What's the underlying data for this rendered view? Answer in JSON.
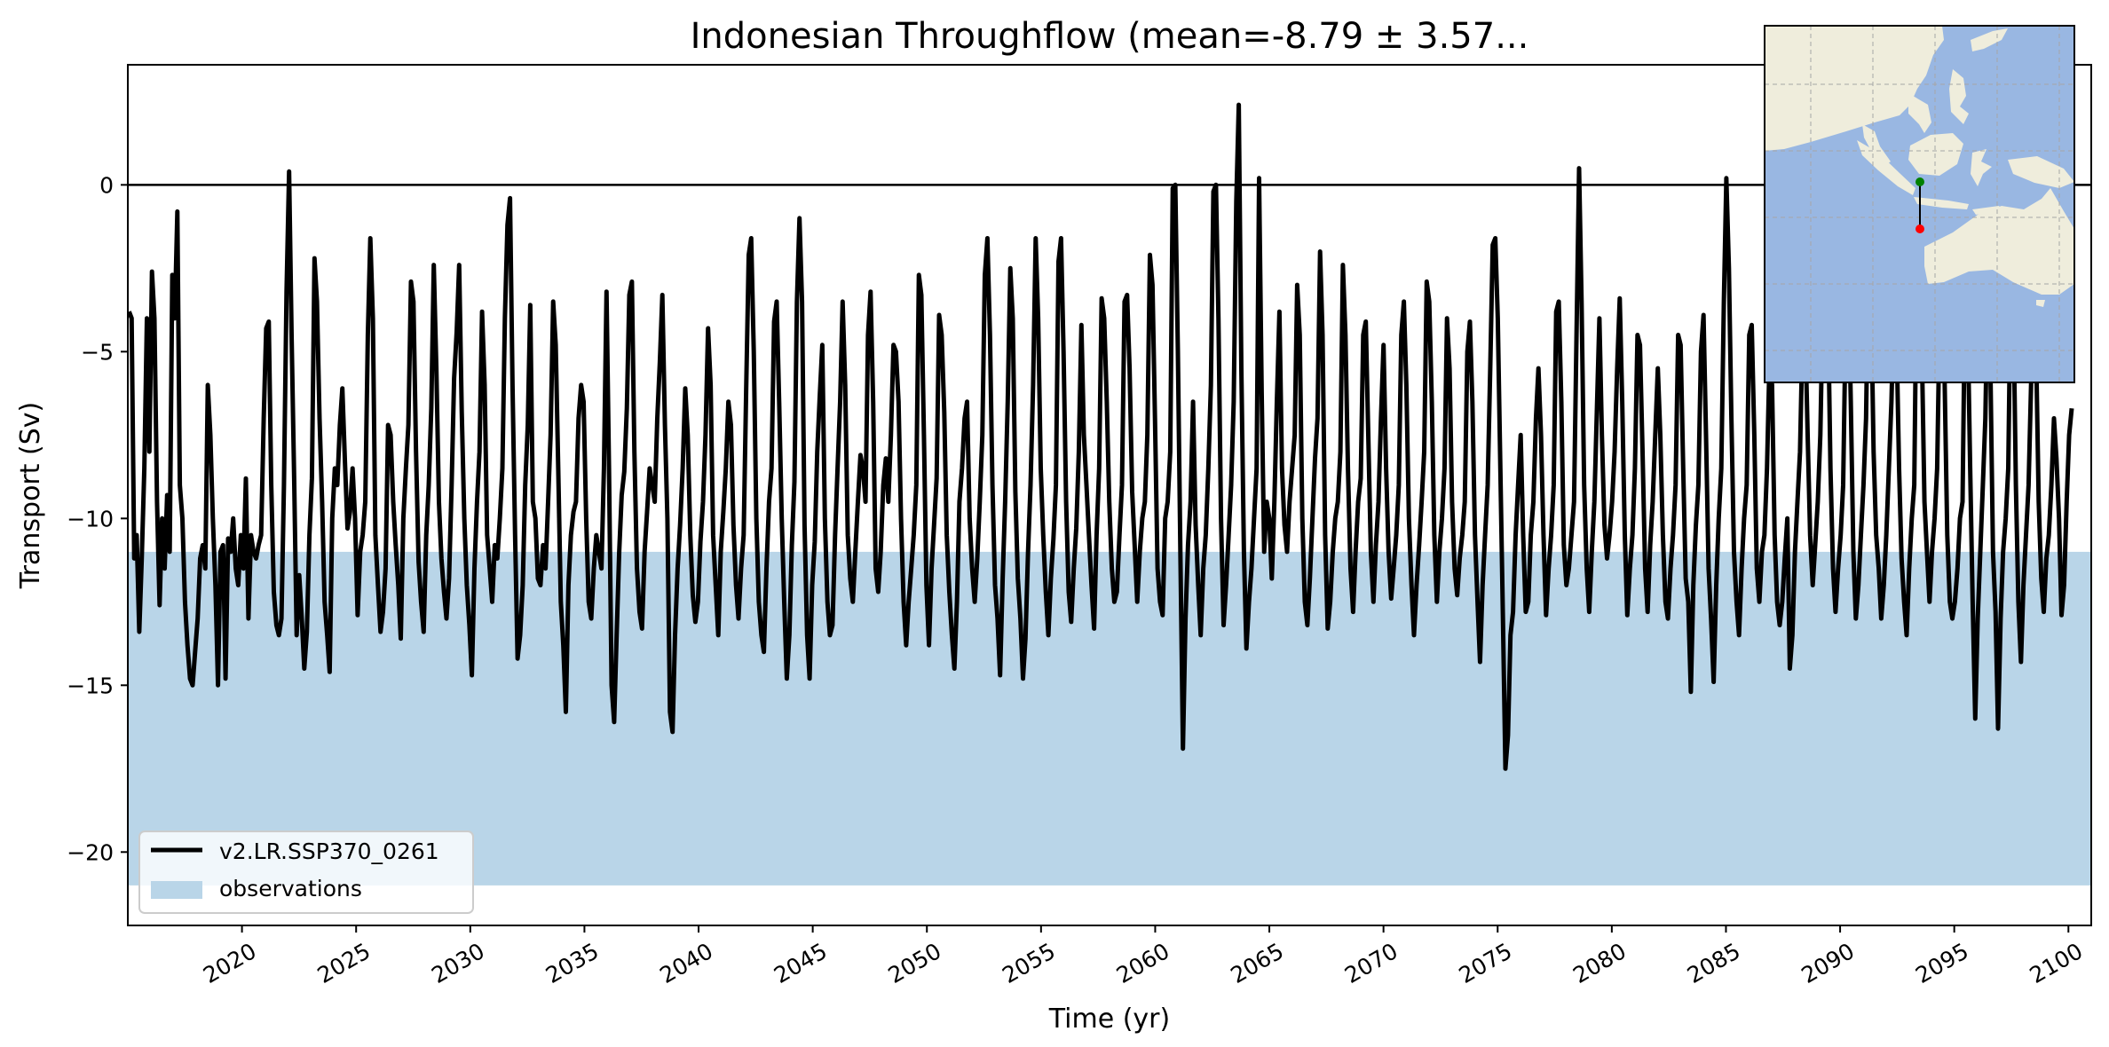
{
  "chart_data": {
    "type": "line",
    "title": "Indonesian Throughflow (mean=-8.79 ± 3.57...",
    "xlabel": "Time (yr)",
    "ylabel": "Transport (Sv)",
    "xlim": [
      2015,
      2101
    ],
    "ylim": [
      -22.2,
      3.6
    ],
    "x_ticks": [
      2020,
      2025,
      2030,
      2035,
      2040,
      2045,
      2050,
      2055,
      2060,
      2065,
      2070,
      2075,
      2080,
      2085,
      2090,
      2095,
      2100
    ],
    "x_tick_labels": [
      "2020",
      "2025",
      "2030",
      "2035",
      "2040",
      "2045",
      "2050",
      "2055",
      "2060",
      "2065",
      "2070",
      "2075",
      "2080",
      "2085",
      "2090",
      "2095",
      "2100"
    ],
    "y_ticks": [
      0,
      -5,
      -10,
      -15,
      -20
    ],
    "y_tick_labels": [
      "0",
      "−5",
      "−10",
      "−15",
      "−20"
    ],
    "zero_line": 0,
    "legend_position": "lower-left",
    "grid": false,
    "series": [
      {
        "name": "v2.LR.SSP370_0261",
        "color": "#000000",
        "sampling": "monthly",
        "start_year": 2015,
        "values": [
          -3.8,
          -4.0,
          -11.2,
          -10.5,
          -13.4,
          -11.2,
          -8.5,
          -4.0,
          -8.0,
          -2.6,
          -4.0,
          -9.5,
          -12.6,
          -10.0,
          -11.5,
          -9.3,
          -11.0,
          -2.7,
          -4.0,
          -0.8,
          -9.0,
          -10.0,
          -12.5,
          -13.8,
          -14.8,
          -15.0,
          -14.0,
          -13.0,
          -11.2,
          -10.8,
          -11.5,
          -6.0,
          -7.5,
          -10.0,
          -12.0,
          -15.0,
          -11.0,
          -10.8,
          -14.8,
          -10.6,
          -11.0,
          -10.0,
          -11.5,
          -12.0,
          -10.5,
          -11.5,
          -8.8,
          -13.0,
          -10.5,
          -11.0,
          -11.2,
          -10.8,
          -10.5,
          -7.0,
          -4.3,
          -4.1,
          -9.0,
          -12.2,
          -13.2,
          -13.5,
          -13.0,
          -9.0,
          -3.2,
          0.4,
          -4.5,
          -8.8,
          -13.5,
          -11.7,
          -13.0,
          -14.5,
          -13.4,
          -10.5,
          -8.8,
          -2.2,
          -3.5,
          -7.0,
          -9.5,
          -12.5,
          -13.5,
          -14.6,
          -10.0,
          -8.5,
          -9.0,
          -7.2,
          -6.1,
          -8.3,
          -10.3,
          -9.8,
          -8.5,
          -10.0,
          -12.9,
          -11.0,
          -10.5,
          -9.5,
          -4.5,
          -1.6,
          -4.0,
          -10.5,
          -12.0,
          -13.4,
          -12.8,
          -11.5,
          -7.2,
          -7.5,
          -9.5,
          -10.8,
          -12.0,
          -13.6,
          -10.0,
          -8.5,
          -7.2,
          -2.9,
          -3.5,
          -8.0,
          -11.3,
          -12.5,
          -13.4,
          -10.5,
          -9.0,
          -6.7,
          -2.4,
          -5.5,
          -9.5,
          -11.2,
          -12.2,
          -13.0,
          -11.8,
          -9.0,
          -5.8,
          -4.4,
          -2.4,
          -6.8,
          -10.0,
          -12.0,
          -13.2,
          -14.7,
          -11.5,
          -9.5,
          -8.0,
          -3.8,
          -6.0,
          -10.5,
          -11.5,
          -12.5,
          -10.8,
          -11.2,
          -10.0,
          -8.5,
          -4.0,
          -1.2,
          -0.4,
          -6.0,
          -10.5,
          -14.2,
          -13.5,
          -12.0,
          -9.0,
          -7.2,
          -3.6,
          -9.5,
          -10.0,
          -11.8,
          -12.0,
          -10.8,
          -11.5,
          -9.5,
          -7.5,
          -3.5,
          -4.8,
          -8.5,
          -12.5,
          -13.8,
          -15.8,
          -12.0,
          -10.5,
          -9.8,
          -9.5,
          -7.0,
          -6.0,
          -6.5,
          -10.0,
          -12.5,
          -13.0,
          -11.5,
          -10.5,
          -11.0,
          -11.5,
          -8.5,
          -3.2,
          -8.5,
          -15.0,
          -16.1,
          -13.5,
          -11.0,
          -9.3,
          -8.6,
          -6.7,
          -3.3,
          -2.9,
          -8.0,
          -11.5,
          -12.8,
          -13.3,
          -11.0,
          -9.8,
          -8.5,
          -9.0,
          -9.5,
          -7.0,
          -5.3,
          -3.3,
          -7.2,
          -10.0,
          -15.8,
          -16.4,
          -13.5,
          -11.5,
          -10.2,
          -8.5,
          -6.1,
          -7.5,
          -10.5,
          -12.3,
          -13.1,
          -12.5,
          -10.7,
          -9.5,
          -7.5,
          -4.3,
          -6.0,
          -10.5,
          -12.0,
          -13.5,
          -11.0,
          -9.8,
          -8.5,
          -6.5,
          -7.2,
          -10.2,
          -12.0,
          -13.0,
          -11.5,
          -10.5,
          -6.2,
          -2.1,
          -1.6,
          -5.0,
          -10.0,
          -12.5,
          -13.5,
          -14.0,
          -11.5,
          -9.5,
          -8.5,
          -4.1,
          -3.5,
          -6.5,
          -10.0,
          -12.5,
          -14.8,
          -13.5,
          -10.8,
          -8.9,
          -3.5,
          -1.0,
          -3.5,
          -10.2,
          -13.5,
          -14.8,
          -12.0,
          -10.7,
          -8.0,
          -6.3,
          -4.8,
          -10.0,
          -12.5,
          -13.5,
          -13.2,
          -10.5,
          -8.5,
          -6.5,
          -3.5,
          -6.0,
          -10.5,
          -11.8,
          -12.5,
          -11.0,
          -9.5,
          -8.1,
          -8.5,
          -9.5,
          -4.5,
          -3.2,
          -6.5,
          -11.5,
          -12.2,
          -11.0,
          -9.0,
          -8.2,
          -9.5,
          -7.5,
          -4.8,
          -5.0,
          -6.5,
          -10.0,
          -12.5,
          -13.8,
          -12.5,
          -11.5,
          -10.5,
          -9.0,
          -2.7,
          -3.3,
          -7.5,
          -12.0,
          -13.8,
          -11.5,
          -10.2,
          -8.8,
          -3.9,
          -4.5,
          -6.8,
          -10.5,
          -12.2,
          -13.5,
          -14.5,
          -12.5,
          -9.5,
          -8.5,
          -7.0,
          -6.5,
          -10.0,
          -11.5,
          -12.5,
          -11.2,
          -9.5,
          -7.5,
          -2.7,
          -1.6,
          -4.5,
          -9.0,
          -12.0,
          -13.0,
          -14.7,
          -11.8,
          -9.5,
          -6.5,
          -2.5,
          -4.0,
          -9.2,
          -11.8,
          -13.0,
          -14.8,
          -13.6,
          -11.0,
          -9.0,
          -6.0,
          -1.6,
          -4.0,
          -8.5,
          -10.5,
          -12.2,
          -13.5,
          -11.8,
          -10.6,
          -9.0,
          -2.3,
          -1.6,
          -5.0,
          -9.5,
          -12.2,
          -13.1,
          -11.5,
          -10.3,
          -8.0,
          -4.2,
          -7.5,
          -9.0,
          -10.5,
          -12.0,
          -13.3,
          -10.5,
          -8.5,
          -3.4,
          -4.0,
          -6.5,
          -9.5,
          -11.5,
          -12.5,
          -12.2,
          -10.5,
          -9.0,
          -3.5,
          -3.3,
          -5.5,
          -9.2,
          -10.8,
          -12.5,
          -11.0,
          -10.0,
          -9.5,
          -7.5,
          -2.1,
          -3.0,
          -7.0,
          -11.5,
          -12.5,
          -12.9,
          -10.0,
          -9.5,
          -8.0,
          -0.1,
          0.0,
          -5.0,
          -11.0,
          -16.9,
          -13.0,
          -10.8,
          -9.5,
          -6.5,
          -10.2,
          -12.0,
          -13.5,
          -11.5,
          -10.5,
          -8.5,
          -6.0,
          -0.2,
          0.0,
          -4.0,
          -10.0,
          -13.2,
          -12.0,
          -10.5,
          -9.0,
          -6.5,
          -0.5,
          2.4,
          -5.5,
          -11.0,
          -13.9,
          -12.5,
          -11.5,
          -10.0,
          -8.5,
          0.2,
          -6.2,
          -11.0,
          -9.5,
          -10.0,
          -11.8,
          -9.5,
          -6.5,
          -3.8,
          -8.5,
          -10.2,
          -11.0,
          -9.5,
          -8.5,
          -7.5,
          -3.0,
          -4.5,
          -10.0,
          -12.5,
          -13.2,
          -11.8,
          -10.0,
          -8.2,
          -7.0,
          -2.0,
          -4.5,
          -10.5,
          -13.3,
          -12.5,
          -11.0,
          -10.0,
          -9.5,
          -8.0,
          -2.4,
          -4.5,
          -8.5,
          -11.5,
          -12.8,
          -11.0,
          -9.5,
          -8.8,
          -4.5,
          -4.1,
          -7.5,
          -11.0,
          -12.5,
          -10.8,
          -9.5,
          -7.0,
          -4.8,
          -8.5,
          -11.0,
          -12.4,
          -11.5,
          -10.5,
          -9.0,
          -4.5,
          -3.5,
          -6.0,
          -10.0,
          -12.0,
          -13.5,
          -12.0,
          -10.8,
          -9.5,
          -8.0,
          -2.9,
          -3.5,
          -6.5,
          -10.5,
          -12.5,
          -11.0,
          -10.0,
          -8.5,
          -4.0,
          -5.5,
          -9.5,
          -11.5,
          -12.3,
          -11.2,
          -10.5,
          -9.5,
          -5.0,
          -4.1,
          -6.5,
          -10.5,
          -12.5,
          -14.3,
          -12.0,
          -10.5,
          -9.0,
          -5.5,
          -1.8,
          -1.6,
          -4.0,
          -8.5,
          -13.0,
          -17.5,
          -16.5,
          -13.5,
          -12.8,
          -10.5,
          -9.0,
          -7.5,
          -10.5,
          -12.8,
          -12.5,
          -10.5,
          -9.5,
          -7.0,
          -5.5,
          -7.5,
          -10.5,
          -12.9,
          -11.5,
          -10.5,
          -9.0,
          -3.8,
          -3.5,
          -6.5,
          -10.8,
          -12.0,
          -11.5,
          -10.5,
          -9.5,
          -4.5,
          0.5,
          -3.5,
          -9.0,
          -11.5,
          -12.8,
          -11.0,
          -9.5,
          -6.8,
          -4.0,
          -7.5,
          -10.2,
          -11.2,
          -10.5,
          -9.5,
          -8.0,
          -5.5,
          -3.4,
          -6.5,
          -10.5,
          -12.9,
          -11.5,
          -10.5,
          -8.5,
          -4.5,
          -4.8,
          -8.0,
          -11.5,
          -12.8,
          -10.8,
          -9.5,
          -7.5,
          -5.5,
          -7.5,
          -10.5,
          -12.5,
          -13.0,
          -11.5,
          -10.5,
          -9.0,
          -4.5,
          -4.8,
          -8.5,
          -11.8,
          -12.5,
          -15.2,
          -12.0,
          -10.2,
          -9.0,
          -5.0,
          -3.9,
          -7.5,
          -11.5,
          -13.0,
          -14.9,
          -12.0,
          -10.0,
          -8.5,
          -3.5,
          0.2,
          -2.5,
          -7.0,
          -11.0,
          -12.5,
          -13.5,
          -11.5,
          -10.0,
          -9.0,
          -4.5,
          -4.2,
          -7.5,
          -11.5,
          -12.5,
          -11.0,
          -10.5,
          -8.5,
          -5.3,
          -6.0,
          -10.5,
          -12.5,
          -13.2,
          -12.5,
          -11.2,
          -10.0,
          -14.5,
          -13.5,
          -11.0,
          -9.5,
          -8.0,
          -4.5,
          -4.1,
          -7.5,
          -10.5,
          -12.0,
          -10.8,
          -9.5,
          -7.5,
          -3.5,
          0.0,
          -3.5,
          -8.5,
          -11.5,
          -12.8,
          -11.5,
          -10.5,
          -9.0,
          -4.0,
          -2.5,
          -6.5,
          -11.0,
          -13.0,
          -12.0,
          -10.5,
          -9.0,
          -7.0,
          -2.0,
          -3.5,
          -8.0,
          -10.5,
          -11.5,
          -13.0,
          -12.0,
          -10.5,
          -8.5,
          -6.5,
          -3.5,
          -4.5,
          -8.5,
          -11.2,
          -12.5,
          -13.5,
          -11.5,
          -10.0,
          -9.0,
          -2.0,
          -1.8,
          -5.0,
          -9.5,
          -11.0,
          -12.5,
          -11.0,
          -10.0,
          -8.5,
          -4.0,
          -2.0,
          -6.0,
          -10.5,
          -12.5,
          -13.0,
          -12.5,
          -11.5,
          -10.0,
          -9.5,
          -3.2,
          -4.0,
          -8.5,
          -12.5,
          -16.0,
          -13.0,
          -11.0,
          -9.0,
          -7.0,
          -2.6,
          -5.5,
          -11.0,
          -12.8,
          -16.3,
          -13.0,
          -11.0,
          -10.0,
          -8.5,
          -2.8,
          -3.5,
          -9.0,
          -12.5,
          -14.3,
          -12.0,
          -10.5,
          -9.0,
          -6.0,
          -2.8,
          -5.0,
          -9.5,
          -11.8,
          -12.8,
          -11.2,
          -10.5,
          -9.0,
          -7.0,
          -8.2,
          -10.0,
          -12.9,
          -12.0,
          -9.5,
          -7.5,
          -6.7
        ]
      }
    ],
    "bands": [
      {
        "name": "observations",
        "y_range": [
          -21,
          -11
        ],
        "color": "#b9d5e8"
      }
    ]
  },
  "inset_map": {
    "ocean_color": "#99b7e2",
    "land_color": "#efeddc",
    "gridline_color": "#a6a6a6",
    "section_line_color": "#000000",
    "start_point_color": "#008000",
    "end_point_color": "#ff0000"
  }
}
